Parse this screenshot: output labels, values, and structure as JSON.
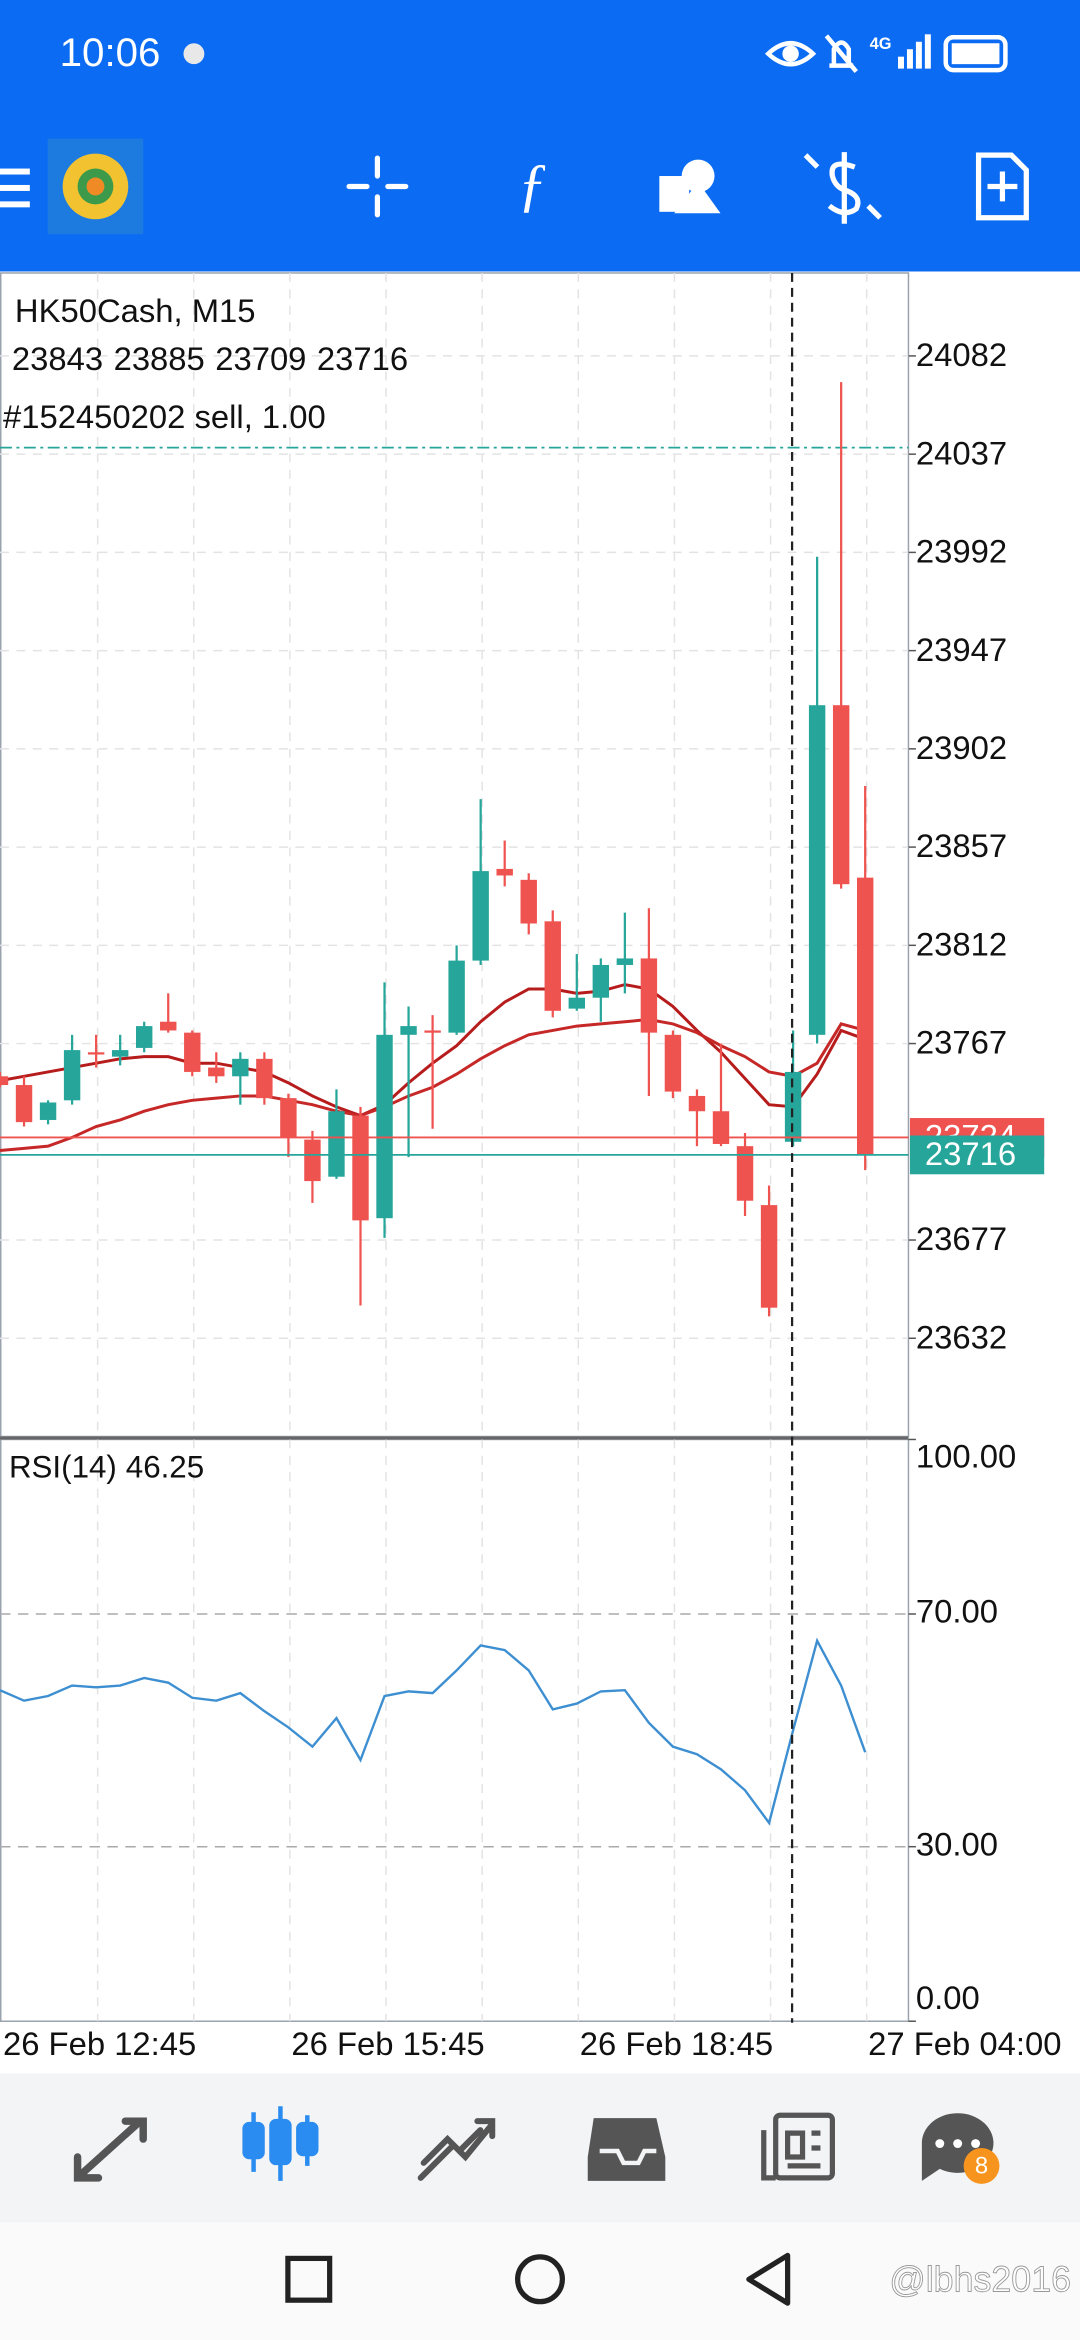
{
  "status_bar": {
    "time": "10:06",
    "network": "4G"
  },
  "symbol_header": {
    "title": "HK50Cash, M15",
    "order": "#152450202 sell, 1.00"
  },
  "chart_data": [
    {
      "type": "candlestick",
      "categories": [
        "26 Feb 12:45",
        null,
        null,
        null,
        null,
        null,
        null,
        null,
        null,
        null,
        null,
        null,
        "26 Feb 15:45",
        null,
        null,
        null,
        null,
        null,
        null,
        null,
        null,
        null,
        null,
        null,
        "26 Feb 18:45",
        null,
        null,
        null,
        null,
        null,
        null,
        null,
        null,
        null,
        null,
        null,
        "27 Feb 04:00"
      ],
      "open": [
        23752,
        23748,
        23732,
        23741,
        23763,
        23761,
        23765,
        23777,
        23772,
        23756,
        23752,
        23760,
        23742,
        23723,
        23706,
        23734,
        23687,
        23771,
        23773,
        23772,
        23805,
        23847,
        23842,
        23823,
        23783,
        23788,
        23803,
        23806,
        23771,
        23743,
        23736,
        23720,
        23693,
        23722,
        23771,
        23922,
        23843
      ],
      "high": [
        23754,
        23752,
        23741,
        23771,
        23771,
        23771,
        23777,
        23790,
        23773,
        23763,
        23763,
        23763,
        23744,
        23727,
        23746,
        23738,
        23795,
        23784,
        23780,
        23812,
        23879,
        23860,
        23845,
        23828,
        23808,
        23806,
        23827,
        23829,
        23773,
        23746,
        23767,
        23726,
        23702,
        23773,
        23990,
        24070,
        23885
      ],
      "low": [
        23747,
        23729,
        23730,
        23739,
        23756,
        23757,
        23763,
        23772,
        23752,
        23749,
        23739,
        23739,
        23715,
        23694,
        23705,
        23647,
        23678,
        23715,
        23728,
        23771,
        23803,
        23839,
        23817,
        23779,
        23782,
        23777,
        23790,
        23743,
        23742,
        23720,
        23720,
        23688,
        23642,
        23720,
        23767,
        23838,
        23709
      ],
      "close": [
        23748,
        23731,
        23740,
        23764,
        23762,
        23764,
        23775,
        23773,
        23754,
        23752,
        23760,
        23742,
        23724,
        23704,
        23736,
        23686,
        23771,
        23775,
        23772,
        23805,
        23846,
        23844,
        23822,
        23782,
        23788,
        23803,
        23806,
        23772,
        23745,
        23736,
        23721,
        23695,
        23646,
        23754,
        23922,
        23840,
        23716
      ],
      "up_color": "#26a69a",
      "down_color": "#ef5350",
      "overlays": [
        {
          "color": "#b71c1c",
          "values": [
            23750,
            23752,
            23754,
            23756,
            23758,
            23760,
            23761,
            23761,
            23758,
            23758,
            23756,
            23754,
            23749,
            23743,
            23738,
            23734,
            23739,
            23749,
            23758,
            23766,
            23777,
            23786,
            23792,
            23792,
            23790,
            23791,
            23794,
            23792,
            23784,
            23773,
            23763,
            23751,
            23739,
            23738,
            23753,
            23773,
            23769
          ]
        },
        {
          "color": "#c62828",
          "values": [
            23718,
            23719,
            23720,
            23724,
            23729,
            23732,
            23736,
            23739,
            23741,
            23742,
            23743,
            23743,
            23741,
            23739,
            23736,
            23734,
            23738,
            23743,
            23747,
            23753,
            23760,
            23766,
            23771,
            23773,
            23775,
            23776,
            23777,
            23778,
            23776,
            23772,
            23766,
            23761,
            23754,
            23752,
            23758,
            23776,
            23773
          ]
        }
      ],
      "order_line": {
        "value": 24040,
        "color": "#26a69a"
      },
      "ask": {
        "value": 23724,
        "color": "#ef5350"
      },
      "bid": {
        "value": 23716,
        "color": "#26a69a"
      },
      "ylim": [
        23587,
        24120
      ],
      "yticks": [
        24082,
        24037,
        23992,
        23947,
        23902,
        23857,
        23812,
        23767,
        23677,
        23632
      ],
      "grid": true
    },
    {
      "type": "line",
      "title": "RSI(14)",
      "values": [
        56.9,
        55.1,
        55.9,
        57.7,
        57.4,
        57.7,
        59.0,
        58.2,
        55.6,
        55.1,
        56.4,
        53.3,
        50.5,
        47.2,
        52.1,
        44.9,
        55.9,
        56.7,
        56.4,
        60.3,
        64.6,
        63.8,
        60.3,
        53.6,
        54.6,
        56.7,
        56.9,
        51.3,
        47.2,
        45.9,
        43.3,
        39.7,
        34.1,
        50.0,
        65.4,
        57.7,
        46.25
      ],
      "color": "#3d8fd1",
      "ylim": [
        0,
        100
      ],
      "yticks": [
        {
          "value": 100,
          "label": "100.00"
        },
        {
          "value": 70,
          "label": "70.00"
        },
        {
          "value": 30,
          "label": "30.00"
        },
        {
          "value": 0,
          "label": "0.00"
        }
      ],
      "levels": [
        70,
        30
      ]
    }
  ],
  "bottom_nav": {
    "chat_badge": "8"
  },
  "watermark": "@lbhs2016"
}
